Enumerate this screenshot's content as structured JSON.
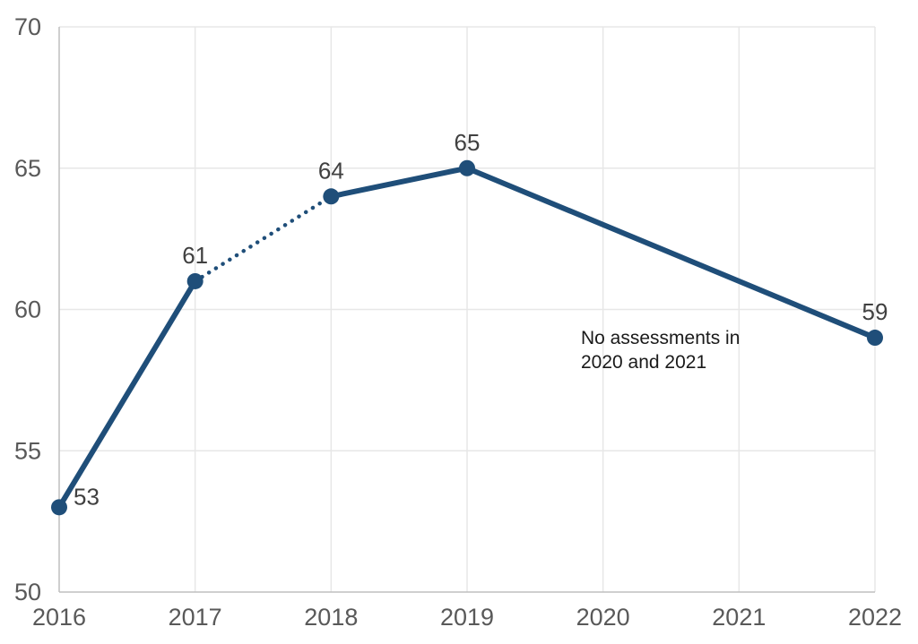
{
  "chart_data": {
    "type": "line",
    "title": "",
    "xlabel": "",
    "ylabel": "",
    "x_categories": [
      "2016",
      "2017",
      "2018",
      "2019",
      "2020",
      "2021",
      "2022"
    ],
    "x_values": [
      2016,
      2017,
      2018,
      2019,
      2020,
      2021,
      2022
    ],
    "xlim": [
      2016,
      2022
    ],
    "ylim": [
      50,
      70
    ],
    "yticks": [
      50,
      55,
      60,
      65,
      70
    ],
    "ytick_labels": [
      "50",
      "55",
      "60",
      "65",
      "70"
    ],
    "grid": true,
    "legend_position": "none",
    "series": [
      {
        "name": "assessment-score",
        "color": "#1F4E79",
        "points": [
          {
            "x": 2016,
            "y": 53,
            "label": "53",
            "label_pos": "right"
          },
          {
            "x": 2017,
            "y": 61,
            "label": "61",
            "label_pos": "above"
          },
          {
            "x": 2018,
            "y": 64,
            "label": "64",
            "label_pos": "above"
          },
          {
            "x": 2019,
            "y": 65,
            "label": "65",
            "label_pos": "above"
          },
          {
            "x": 2022,
            "y": 59,
            "label": "59",
            "label_pos": "above"
          }
        ],
        "segments": [
          {
            "from": 2016,
            "to": 2017,
            "style": "solid"
          },
          {
            "from": 2017,
            "to": 2018,
            "style": "dotted"
          },
          {
            "from": 2018,
            "to": 2019,
            "style": "solid"
          },
          {
            "from": 2019,
            "to": 2022,
            "style": "solid"
          }
        ],
        "missing_years": [
          "2020",
          "2021"
        ]
      }
    ],
    "annotation": {
      "lines": [
        "No assessments in",
        "2020 and 2021"
      ]
    }
  },
  "colors": {
    "line": "#1F4E79",
    "gridline": "#E7E7E7",
    "axis_line": "#BFBFBF",
    "tick_label": "#595959",
    "data_label": "#404040",
    "annotation_text": "#1a1a1a",
    "background": "#FFFFFF"
  }
}
